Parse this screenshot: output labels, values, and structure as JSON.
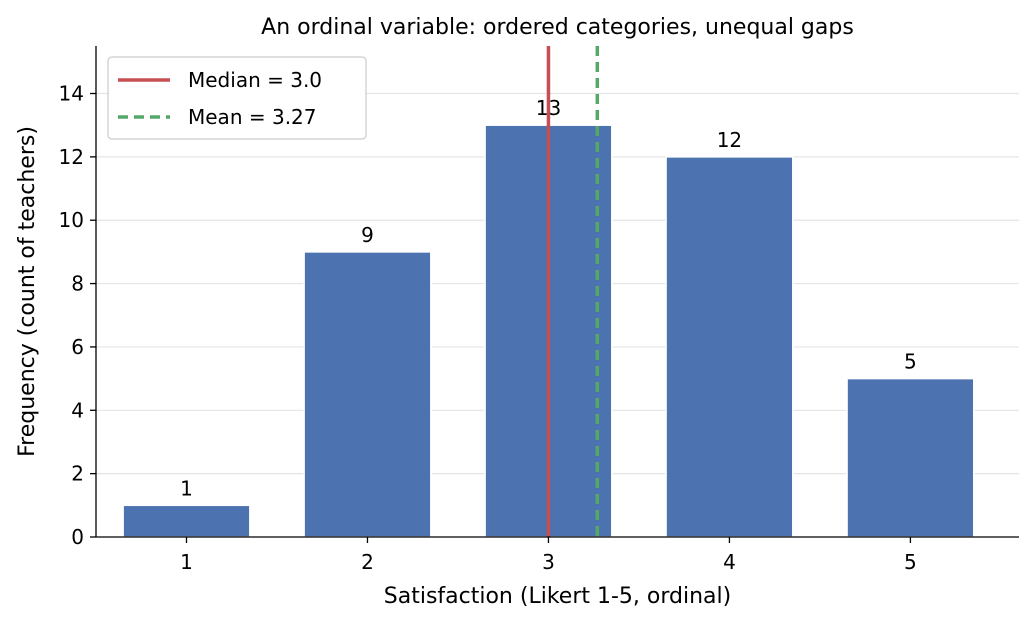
{
  "chart_data": {
    "type": "bar",
    "title": "An ordinal variable: ordered categories, unequal gaps",
    "xlabel": "Satisfaction (Likert 1-5, ordinal)",
    "ylabel": "Frequency (count of teachers)",
    "categories": [
      "1",
      "2",
      "3",
      "4",
      "5"
    ],
    "x": [
      1,
      2,
      3,
      4,
      5
    ],
    "values": [
      1,
      9,
      13,
      12,
      5
    ],
    "data_labels": [
      "1",
      "9",
      "13",
      "12",
      "5"
    ],
    "xlim": [
      0.5,
      5.6
    ],
    "ylim": [
      0,
      15.5
    ],
    "yticks": [
      0,
      2,
      4,
      6,
      8,
      10,
      12,
      14
    ],
    "ytick_labels": [
      "0",
      "2",
      "4",
      "6",
      "8",
      "10",
      "12",
      "14"
    ],
    "grid": "horizontal",
    "legend_position": "top-left",
    "reference_lines": [
      {
        "label": "Median = 3.0",
        "value": 3.0,
        "style": "solid",
        "color": "#c44e52"
      },
      {
        "label": "Mean = 3.27",
        "value": 3.27,
        "style": "dashed",
        "color": "#55a868"
      }
    ],
    "bar_color": "#4c72b0"
  }
}
